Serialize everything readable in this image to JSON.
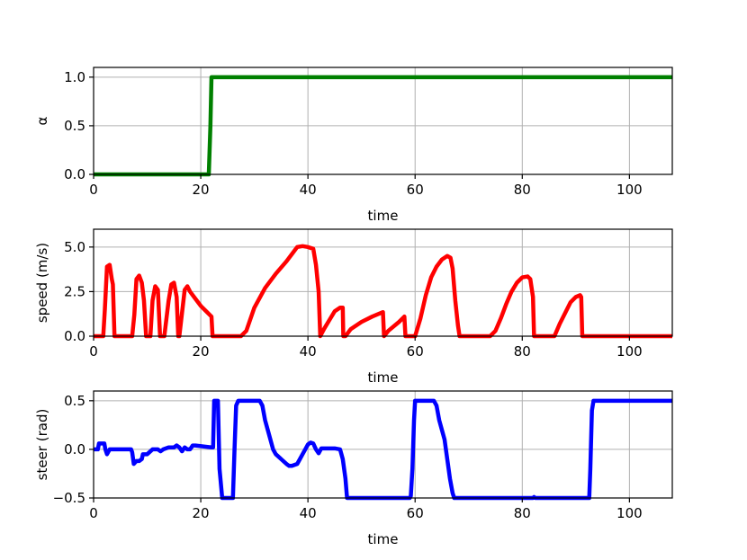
{
  "chart_data": [
    {
      "type": "line",
      "xlabel": "time",
      "ylabel": "α",
      "xlim": [
        0,
        108
      ],
      "ylim": [
        0,
        1.1
      ],
      "xticks": [
        0,
        20,
        40,
        60,
        80,
        100
      ],
      "yticks": [
        0,
        0.5,
        1
      ],
      "xtick_labels": [
        "0",
        "20",
        "40",
        "60",
        "80",
        "100"
      ],
      "ytick_labels": [
        "0.0",
        "0.5",
        "1.0"
      ],
      "grid": true,
      "color": "#008000",
      "x": [
        0,
        21.5,
        21.8,
        22,
        108
      ],
      "y": [
        0,
        0,
        0.5,
        1,
        1
      ]
    },
    {
      "type": "line",
      "xlabel": "time",
      "ylabel": "speed (m/s)",
      "xlim": [
        0,
        108
      ],
      "ylim": [
        0,
        6
      ],
      "xticks": [
        0,
        20,
        40,
        60,
        80,
        100
      ],
      "yticks": [
        0,
        2.5,
        5
      ],
      "xtick_labels": [
        "0",
        "20",
        "40",
        "60",
        "80",
        "100"
      ],
      "ytick_labels": [
        "0.0",
        "2.5",
        "5.0"
      ],
      "grid": true,
      "color": "#ff0000",
      "x": [
        0,
        1.8,
        2.1,
        2.5,
        3.0,
        3.4,
        3.6,
        3.9,
        7.2,
        7.6,
        8.0,
        8.5,
        9.0,
        9.4,
        9.8,
        10.6,
        11.0,
        11.5,
        12.0,
        12.4,
        13.2,
        14.0,
        14.5,
        15.0,
        15.5,
        15.8,
        16.0,
        17.0,
        17.5,
        18.0,
        19.0,
        20.0,
        21.0,
        22.0,
        22.2,
        27.5,
        28.5,
        30.0,
        32.0,
        34.0,
        36.0,
        37.0,
        38.0,
        39.0,
        40.0,
        41.0,
        41.5,
        42.0,
        42.3,
        43.0,
        44.0,
        45.0,
        46.0,
        46.5,
        46.6,
        47.0,
        48.0,
        50.0,
        52.0,
        54.0,
        54.2,
        55.0,
        57.0,
        58.0,
        58.2,
        60.0,
        61.0,
        62.0,
        63.0,
        64.0,
        65.0,
        66.0,
        66.6,
        67.0,
        67.5,
        68.0,
        68.3,
        74.0,
        75.0,
        76.0,
        77.0,
        78.0,
        79.0,
        80.0,
        81.0,
        81.5,
        82.0,
        82.2,
        86.0,
        87.0,
        88.0,
        89.0,
        90.0,
        90.8,
        91.0,
        91.2,
        108.0
      ],
      "y": [
        0,
        0,
        1.5,
        3.9,
        4.0,
        3.2,
        2.9,
        0,
        0,
        1.2,
        3.2,
        3.4,
        3.0,
        2.0,
        0,
        0,
        2.0,
        2.8,
        2.6,
        0,
        0,
        2.0,
        2.9,
        3.0,
        2.2,
        0,
        0,
        2.6,
        2.8,
        2.5,
        2.1,
        1.7,
        1.4,
        1.1,
        0,
        0,
        0.3,
        1.6,
        2.7,
        3.5,
        4.2,
        4.6,
        5.0,
        5.05,
        5.0,
        4.9,
        4.0,
        2.5,
        0,
        0.4,
        0.9,
        1.4,
        1.6,
        1.6,
        0,
        0,
        0.4,
        0.8,
        1.1,
        1.35,
        0,
        0.3,
        0.8,
        1.1,
        0,
        0,
        1.0,
        2.3,
        3.3,
        3.9,
        4.3,
        4.5,
        4.4,
        3.8,
        2.0,
        0.6,
        0,
        0,
        0.3,
        1.0,
        1.8,
        2.5,
        3.0,
        3.3,
        3.35,
        3.2,
        2.2,
        0,
        0,
        0.7,
        1.3,
        1.9,
        2.2,
        2.3,
        2.2,
        0,
        0
      ]
    },
    {
      "type": "line",
      "xlabel": "time",
      "ylabel": "steer (rad)",
      "xlim": [
        0,
        108
      ],
      "ylim": [
        -0.5,
        0.6
      ],
      "xticks": [
        0,
        20,
        40,
        60,
        80,
        100
      ],
      "yticks": [
        -0.5,
        0,
        0.5
      ],
      "xtick_labels": [
        "0",
        "20",
        "40",
        "60",
        "80",
        "100"
      ],
      "ytick_labels": [
        "−0.5",
        "0.0",
        "0.5"
      ],
      "grid": true,
      "color": "#0000ff",
      "x": [
        0,
        0.8,
        1.0,
        2.0,
        2.2,
        2.5,
        3.0,
        7.0,
        7.2,
        7.5,
        8.0,
        8.5,
        9.0,
        9.2,
        10.0,
        11.0,
        12.0,
        12.5,
        13.0,
        14.0,
        15.0,
        15.5,
        16.0,
        16.5,
        17.0,
        17.5,
        18.0,
        18.5,
        19.0,
        22.0,
        22.3,
        22.5,
        22.8,
        23.2,
        23.5,
        24.0,
        25.0,
        26.0,
        26.3,
        26.6,
        27.0,
        28.0,
        31.0,
        31.5,
        32.0,
        32.5,
        33.0,
        33.5,
        34.0,
        35.0,
        36.0,
        36.5,
        37.0,
        38.0,
        38.5,
        39.0,
        39.5,
        40.0,
        40.5,
        41.0,
        41.5,
        42.0,
        42.5,
        43.0,
        44.0,
        45.0,
        46.0,
        46.5,
        47.0,
        47.3,
        59.0,
        59.2,
        59.5,
        59.8,
        60.0,
        61.0,
        63.0,
        63.5,
        64.0,
        64.5,
        65.0,
        65.5,
        66.0,
        66.5,
        67.0,
        67.3,
        82.0,
        82.2,
        82.4,
        92.5,
        92.7,
        93.0,
        93.3,
        108.0
      ],
      "y": [
        0,
        0,
        0.06,
        0.06,
        0.0,
        -0.05,
        0.0,
        0.0,
        -0.03,
        -0.15,
        -0.12,
        -0.12,
        -0.1,
        -0.05,
        -0.05,
        0.0,
        0.0,
        -0.02,
        0.0,
        0.02,
        0.02,
        0.04,
        0.02,
        -0.02,
        0.02,
        0.0,
        0.0,
        0.04,
        0.04,
        0.02,
        0.02,
        0.5,
        0.5,
        0.5,
        -0.2,
        -0.5,
        -0.5,
        -0.5,
        0.0,
        0.45,
        0.5,
        0.5,
        0.5,
        0.45,
        0.3,
        0.2,
        0.1,
        0.0,
        -0.05,
        -0.1,
        -0.15,
        -0.17,
        -0.17,
        -0.15,
        -0.1,
        -0.05,
        0.0,
        0.05,
        0.07,
        0.06,
        0.0,
        -0.04,
        0.01,
        0.01,
        0.01,
        0.01,
        0.0,
        -0.1,
        -0.3,
        -0.5,
        -0.5,
        -0.48,
        -0.2,
        0.3,
        0.5,
        0.5,
        0.5,
        0.5,
        0.45,
        0.3,
        0.2,
        0.1,
        -0.1,
        -0.3,
        -0.45,
        -0.5,
        -0.5,
        -0.49,
        -0.5,
        -0.5,
        -0.2,
        0.4,
        0.5,
        0.5
      ]
    }
  ]
}
